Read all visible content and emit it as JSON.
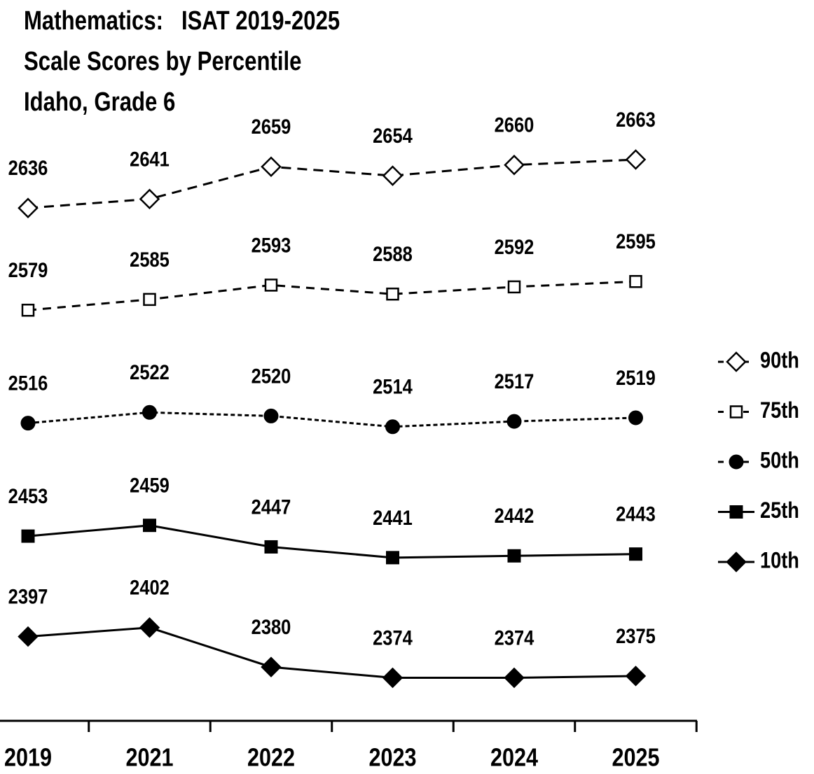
{
  "chart_data": {
    "type": "line",
    "title": "Mathematics:   ISAT 2019-2025",
    "subtitle": [
      "Scale Scores by Percentile",
      "Idaho, Grade 6"
    ],
    "categories": [
      "2019",
      "2021",
      "2022",
      "2023",
      "2024",
      "2025"
    ],
    "ylim": [
      2350,
      2752
    ],
    "legend": "right",
    "series": [
      {
        "name": "90th",
        "color": "#000000",
        "marker": "diamond-open",
        "dash": "14 9",
        "values": [
          2636,
          2641,
          2659,
          2654,
          2660,
          2663
        ]
      },
      {
        "name": "75th",
        "color": "#000000",
        "marker": "square-open",
        "dash": "12 9",
        "values": [
          2579,
          2585,
          2593,
          2588,
          2592,
          2595
        ]
      },
      {
        "name": "50th",
        "color": "#000000",
        "marker": "circle",
        "dash": "6 4",
        "values": [
          2516,
          2522,
          2520,
          2514,
          2517,
          2519
        ]
      },
      {
        "name": "25th",
        "color": "#000000",
        "marker": "square",
        "dash": "none",
        "values": [
          2453,
          2459,
          2447,
          2441,
          2442,
          2443
        ]
      },
      {
        "name": "10th",
        "color": "#000000",
        "marker": "diamond",
        "dash": "none",
        "values": [
          2397,
          2402,
          2380,
          2374,
          2374,
          2375
        ]
      }
    ]
  }
}
